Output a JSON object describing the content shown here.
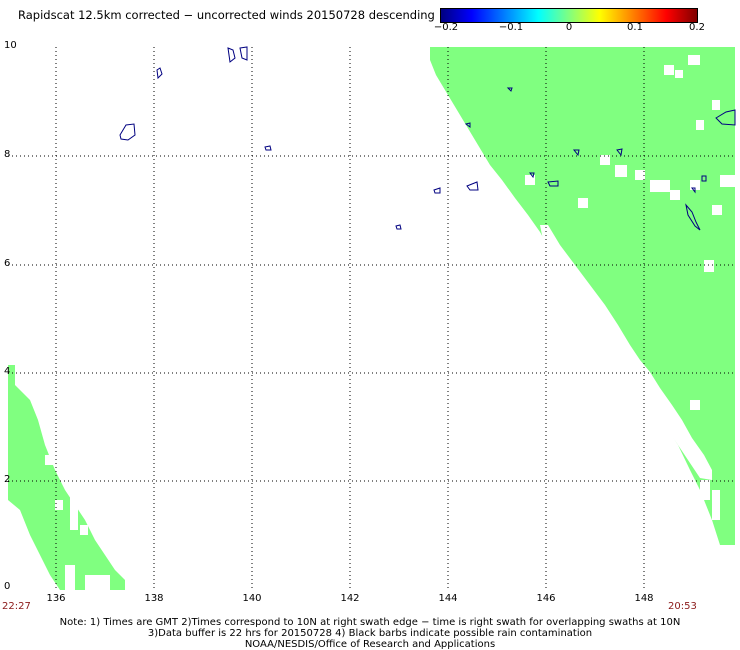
{
  "title": "Rapidscat 12.5km corrected − uncorrected winds 20150728 descending",
  "colorbar": {
    "labels": [
      "−0.2",
      "−0.1",
      "0",
      "0.1",
      "0.2"
    ],
    "colors": [
      "#000080",
      "#0000ff",
      "#00ffff",
      "#80ff80",
      "#ffff00",
      "#ff0000",
      "#800000"
    ]
  },
  "axes": {
    "y_labels": [
      "10",
      "8",
      "6",
      "4",
      "2",
      "0"
    ],
    "x_labels": [
      "136",
      "138",
      "140",
      "142",
      "144",
      "146",
      "148"
    ],
    "lat_range": [
      0,
      10
    ],
    "lon_range": [
      135.2,
      150.3
    ]
  },
  "swath_color": "#80ff80",
  "time_left": "22:27",
  "time_right": "20:53",
  "notes": {
    "line1": "Note: 1) Times are GMT 2)Times correspond to 10N at right swath edge − time is right swath for overlapping swaths at 10N",
    "line2": "3)Data buffer is 22 hrs for 20150728 4) Black barbs indicate possible rain contamination",
    "line3": "NOAA/NESDIS/Office of Research and Applications"
  }
}
